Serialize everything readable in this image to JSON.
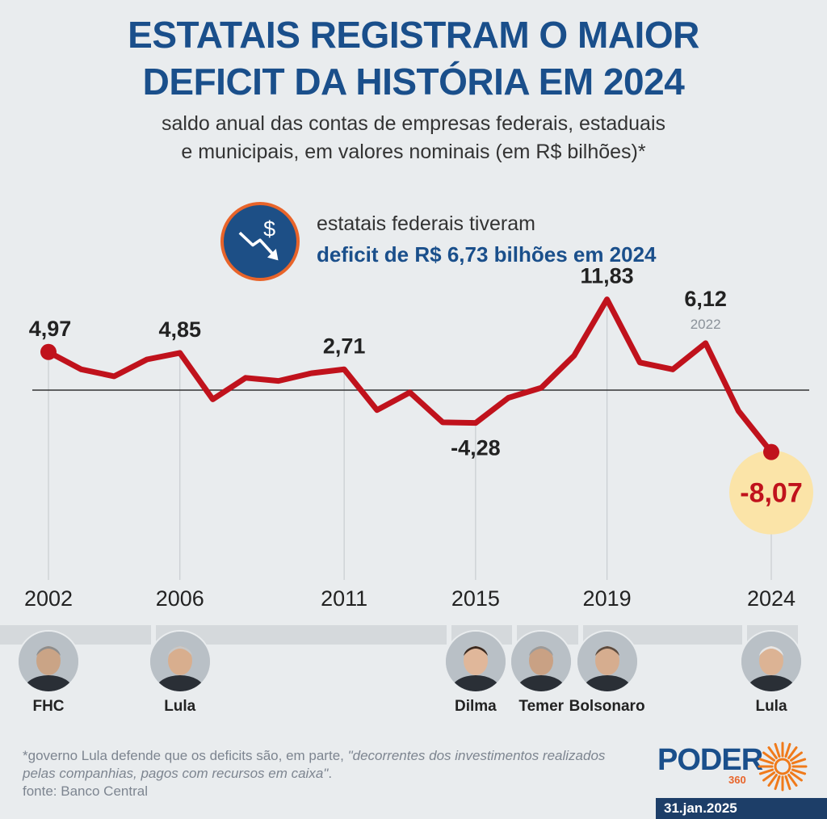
{
  "header": {
    "title_line1": "ESTATAIS REGISTRAM O MAIOR",
    "title_line2": "DEFICIT DA HISTÓRIA EM 2024",
    "subtitle_line1": "saldo anual das contas de empresas federais, estaduais",
    "subtitle_line2": "e municipais, em valores nominais (em R$ bilhões)*"
  },
  "callout": {
    "icon": "dollar-down-trend-icon",
    "line1": "estatais federais tiveram",
    "line2": "deficit de R$ 6,73 bilhões em 2024"
  },
  "chart_data": {
    "type": "line",
    "title": "ESTATAIS REGISTRAM O MAIOR DEFICIT DA HISTÓRIA EM 2024",
    "x": [
      2002,
      2003,
      2004,
      2005,
      2006,
      2007,
      2008,
      2009,
      2010,
      2011,
      2012,
      2013,
      2014,
      2015,
      2016,
      2017,
      2018,
      2019,
      2020,
      2021,
      2022,
      2023,
      2024
    ],
    "values": [
      4.97,
      2.7,
      1.8,
      4.0,
      4.85,
      -1.2,
      1.6,
      1.2,
      2.2,
      2.71,
      -2.6,
      -0.3,
      -4.2,
      -4.28,
      -1.0,
      0.3,
      4.5,
      11.83,
      3.6,
      2.7,
      6.12,
      -2.7,
      -8.07
    ],
    "labels": [
      {
        "x": 2002,
        "text": "4,97"
      },
      {
        "x": 2006,
        "text": "4,85"
      },
      {
        "x": 2011,
        "text": "2,71"
      },
      {
        "x": 2015,
        "text": "-4,28"
      },
      {
        "x": 2019,
        "text": "11,83"
      },
      {
        "x": 2022,
        "text": "6,12",
        "sub": "2022"
      },
      {
        "x": 2024,
        "text": "-8,07",
        "highlight": true
      }
    ],
    "x_ticks": [
      "2002",
      "2006",
      "2011",
      "2015",
      "2019",
      "2024"
    ],
    "baseline": 0,
    "grid": false,
    "line_color": "#c0121c",
    "highlight_color": "#fbe4a8"
  },
  "presidents": [
    {
      "name": "FHC",
      "start": 2002
    },
    {
      "name": "Lula",
      "start": 2006
    },
    {
      "name": "Dilma",
      "start": 2015
    },
    {
      "name": "Temer",
      "start": 2017
    },
    {
      "name": "Bolsonaro",
      "start": 2019
    },
    {
      "name": "Lula",
      "start": 2024
    }
  ],
  "footer": {
    "note_prefix": "*governo Lula defende que os deficits são, em parte, ",
    "note_quote": "\"decorrentes dos investimentos realizados pelas companhias, pagos com recursos em caixa\"",
    "note_suffix": ".",
    "source": "fonte: Banco Central",
    "logo_word": "PODER",
    "logo_number": "360",
    "date": "31.jan.2025"
  }
}
